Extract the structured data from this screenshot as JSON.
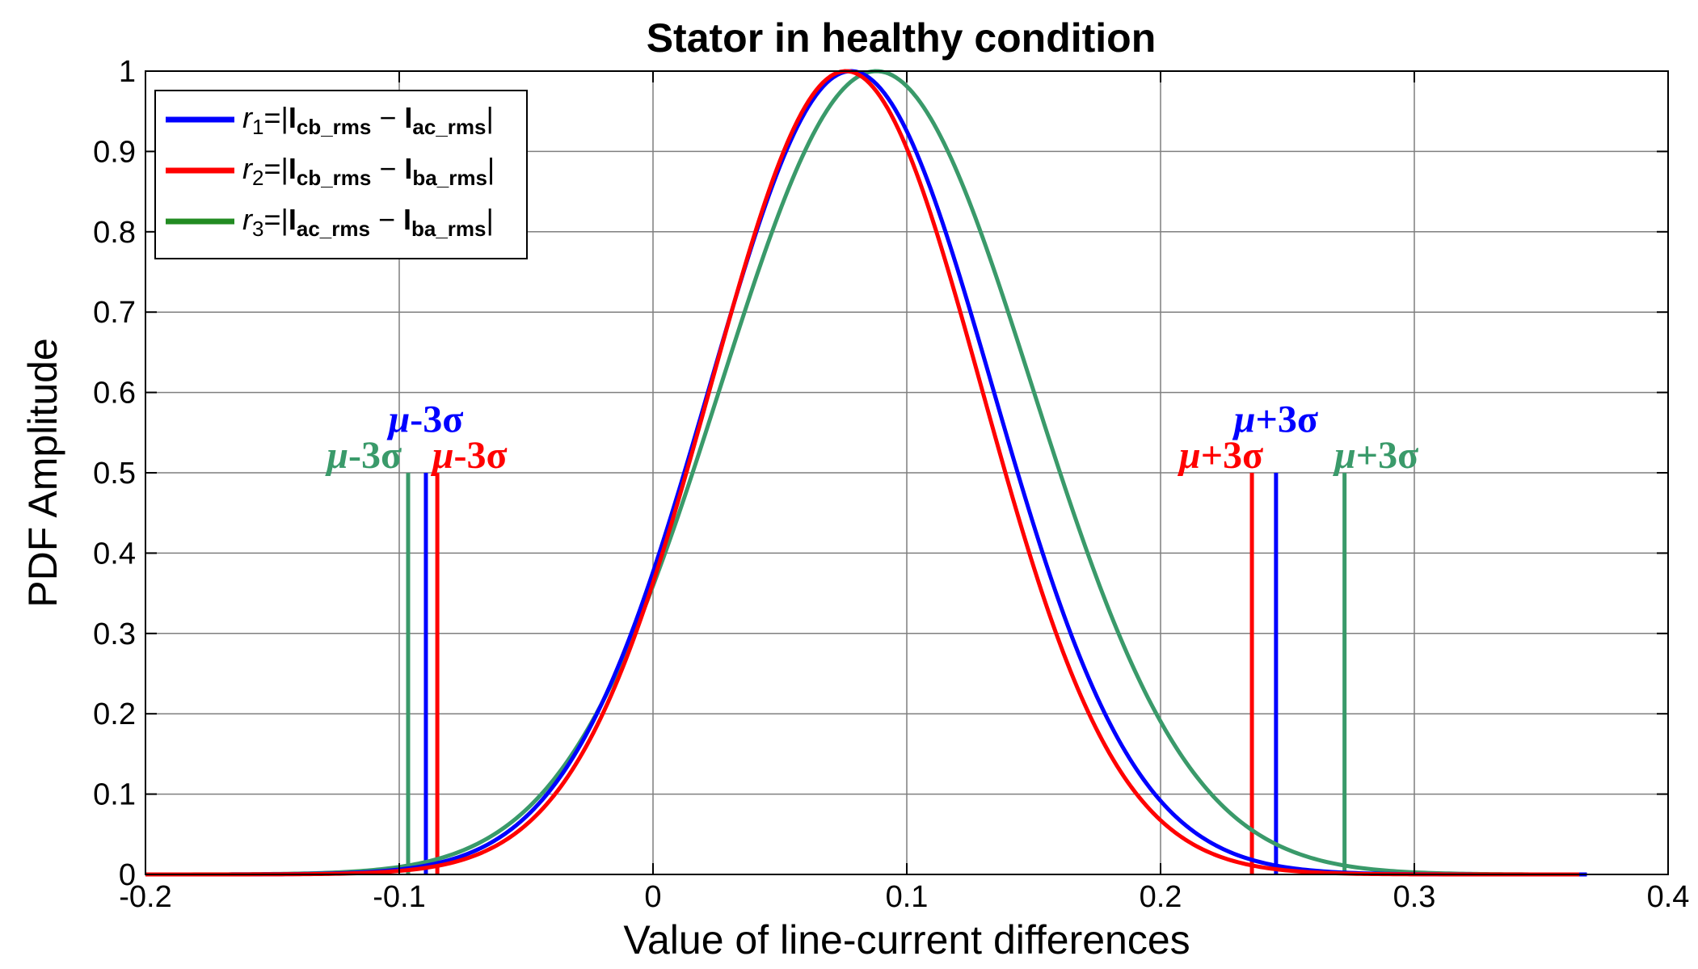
{
  "chart_data": {
    "type": "line",
    "title": "Stator in healthy condition",
    "xlabel": "Value of line-current differences",
    "ylabel": "PDF Amplitude",
    "xlim": [
      -0.2,
      0.4
    ],
    "ylim": [
      0,
      1
    ],
    "xticks": [
      -0.2,
      -0.1,
      0,
      0.1,
      0.2,
      0.3,
      0.4
    ],
    "xtick_labels": [
      "-0.2",
      "-0.1",
      "0",
      "0.1",
      "0.2",
      "0.3",
      "0.4"
    ],
    "yticks": [
      0,
      0.1,
      0.2,
      0.3,
      0.4,
      0.5,
      0.6,
      0.7,
      0.8,
      0.9,
      1
    ],
    "ytick_labels": [
      "0",
      "0.1",
      "0.2",
      "0.3",
      "0.4",
      "0.5",
      "0.6",
      "0.7",
      "0.8",
      "0.9",
      "1"
    ],
    "grid": true,
    "legend_position": "top-left",
    "series": [
      {
        "name": "r1=|Icb_rms − Iac_rms|",
        "legend": {
          "r": "r",
          "sub": "1",
          "eq": "=|",
          "I1": "I",
          "s1": "cb_rms",
          "minus": " − ",
          "I2": "I",
          "s2": "ac_rms",
          "close": "|"
        },
        "color": "#0000ff",
        "mean": 0.078,
        "sigma": 0.0558,
        "x_range": [
          -0.2,
          0.368
        ],
        "mu_minus_3sigma": -0.0895,
        "mu_plus_3sigma": 0.2455
      },
      {
        "name": "r2=|Icb_rms − Iba_rms|",
        "legend": {
          "r": "r",
          "sub": "2",
          "eq": "=|",
          "I1": "I",
          "s1": "cb_rms",
          "minus": " − ",
          "I2": "I",
          "s2": "ba_rms",
          "close": "|"
        },
        "color": "#ff0000",
        "mean": 0.076,
        "sigma": 0.0534,
        "x_range": [
          -0.2,
          0.365
        ],
        "mu_minus_3sigma": -0.085,
        "mu_plus_3sigma": 0.236
      },
      {
        "name": "r3=|Iac_rms − Iba_rms|",
        "legend": {
          "r": "r",
          "sub": "3",
          "eq": "=|",
          "I1": "I",
          "s1": "ac_rms",
          "minus": " − ",
          "I2": "I",
          "s2": "ba_rms",
          "close": "|"
        },
        "color": "#3a9a6a",
        "legend_color": "#228b22",
        "mean": 0.088,
        "sigma": 0.0615,
        "x_range": [
          -0.2,
          0.345
        ],
        "mu_minus_3sigma": -0.0965,
        "mu_plus_3sigma": 0.2725
      }
    ],
    "annotations": [
      {
        "mu": "μ",
        "rest": "-3σ",
        "color": "#0000ff",
        "x": -0.0895,
        "y": 0.545,
        "anchor": "middle"
      },
      {
        "mu": "μ",
        "rest": "-3σ",
        "color": "#3a9a6a",
        "x": -0.099,
        "y": 0.5,
        "anchor": "end"
      },
      {
        "mu": "μ",
        "rest": "-3σ",
        "color": "#ff0000",
        "x": -0.087,
        "y": 0.5,
        "anchor": "start"
      },
      {
        "mu": "μ",
        "rest": "+3σ",
        "color": "#0000ff",
        "x": 0.2455,
        "y": 0.545,
        "anchor": "middle"
      },
      {
        "mu": "μ",
        "rest": "+3σ",
        "color": "#ff0000",
        "x": 0.2405,
        "y": 0.5,
        "anchor": "end"
      },
      {
        "mu": "μ",
        "rest": "+3σ",
        "color": "#3a9a6a",
        "x": 0.2685,
        "y": 0.5,
        "anchor": "start"
      }
    ],
    "marker_height": 0.5
  }
}
